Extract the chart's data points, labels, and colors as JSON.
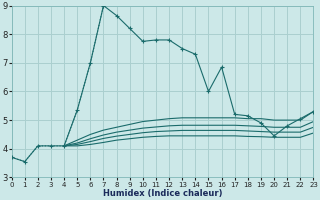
{
  "xlabel": "Humidex (Indice chaleur)",
  "bg_color": "#cce8e8",
  "grid_color": "#aacfcf",
  "line_color": "#1a6b6b",
  "xmin": 0,
  "xmax": 23,
  "ymin": 3,
  "ymax": 9,
  "lines": [
    {
      "x": [
        0,
        1,
        2,
        3,
        4,
        5,
        6,
        7,
        8,
        9,
        10,
        11,
        12,
        13,
        14,
        15,
        16,
        17,
        18,
        19,
        20,
        21,
        22,
        23
      ],
      "y": [
        3.7,
        3.55,
        4.1,
        4.1,
        4.1,
        5.35,
        7.0,
        9.0,
        8.65,
        8.2,
        7.75,
        7.8,
        7.8,
        7.5,
        7.3,
        6.0,
        6.85,
        5.2,
        5.15,
        4.9,
        4.45,
        4.8,
        5.05,
        5.3
      ],
      "linestyle": "-",
      "marker": "+"
    },
    {
      "x": [
        0,
        1,
        2,
        3,
        4,
        5,
        6,
        7,
        8,
        9,
        10,
        11,
        12,
        13,
        14,
        15,
        16,
        17,
        18,
        19,
        20,
        21,
        22,
        23
      ],
      "y": [
        3.7,
        3.55,
        4.1,
        4.1,
        4.1,
        5.35,
        7.0,
        9.0,
        null,
        null,
        null,
        null,
        null,
        null,
        null,
        null,
        null,
        null,
        null,
        null,
        null,
        null,
        null,
        null
      ],
      "linestyle": ":",
      "marker": null
    },
    {
      "x": [
        4,
        5,
        6,
        7,
        8,
        9,
        10,
        11,
        12,
        13,
        14,
        15,
        16,
        17,
        18,
        19,
        20,
        21,
        22,
        23
      ],
      "y": [
        4.1,
        4.3,
        4.5,
        4.65,
        4.75,
        4.85,
        4.95,
        5.0,
        5.05,
        5.08,
        5.08,
        5.08,
        5.08,
        5.08,
        5.05,
        5.05,
        5.0,
        5.0,
        5.0,
        5.3
      ],
      "linestyle": "-",
      "marker": null
    },
    {
      "x": [
        4,
        5,
        6,
        7,
        8,
        9,
        10,
        11,
        12,
        13,
        14,
        15,
        16,
        17,
        18,
        19,
        20,
        21,
        22,
        23
      ],
      "y": [
        4.1,
        4.2,
        4.35,
        4.48,
        4.58,
        4.65,
        4.72,
        4.76,
        4.8,
        4.82,
        4.82,
        4.82,
        4.82,
        4.82,
        4.8,
        4.78,
        4.75,
        4.75,
        4.75,
        4.95
      ],
      "linestyle": "-",
      "marker": null
    },
    {
      "x": [
        4,
        5,
        6,
        7,
        8,
        9,
        10,
        11,
        12,
        13,
        14,
        15,
        16,
        17,
        18,
        19,
        20,
        21,
        22,
        23
      ],
      "y": [
        4.1,
        4.15,
        4.25,
        4.36,
        4.44,
        4.5,
        4.56,
        4.6,
        4.62,
        4.64,
        4.64,
        4.64,
        4.64,
        4.64,
        4.62,
        4.6,
        4.58,
        4.58,
        4.58,
        4.75
      ],
      "linestyle": "-",
      "marker": null
    },
    {
      "x": [
        4,
        5,
        6,
        7,
        8,
        9,
        10,
        11,
        12,
        13,
        14,
        15,
        16,
        17,
        18,
        19,
        20,
        21,
        22,
        23
      ],
      "y": [
        4.1,
        4.1,
        4.15,
        4.22,
        4.3,
        4.35,
        4.4,
        4.43,
        4.45,
        4.45,
        4.45,
        4.45,
        4.45,
        4.45,
        4.43,
        4.42,
        4.4,
        4.4,
        4.4,
        4.55
      ],
      "linestyle": "-",
      "marker": null
    }
  ]
}
